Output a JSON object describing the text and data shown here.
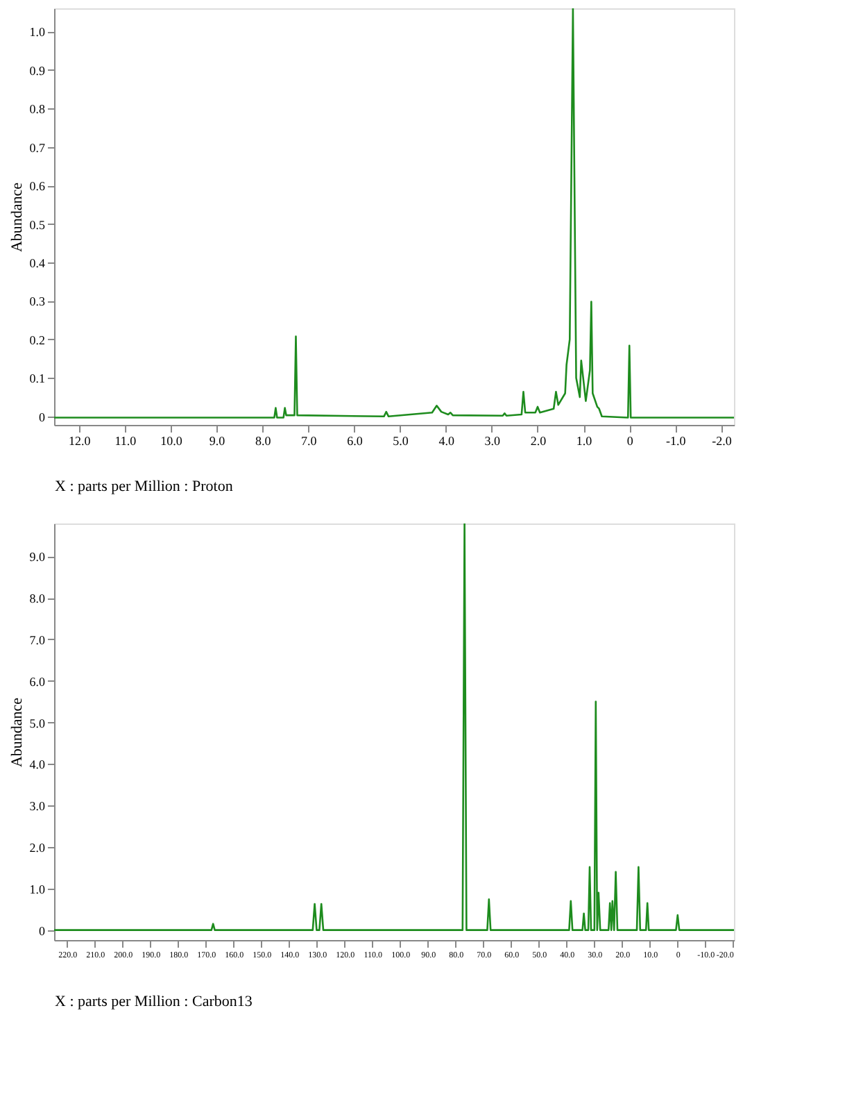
{
  "chart_data": [
    {
      "type": "line",
      "xlabel": "X : parts per Million : Proton",
      "ylabel": "Abundance",
      "grid": false,
      "marker": "none",
      "x": [
        12.54,
        7.74,
        7.71,
        7.68,
        7.54,
        7.51,
        7.48,
        7.3,
        7.27,
        7.24,
        5.35,
        5.3,
        5.25,
        4.3,
        4.2,
        4.1,
        3.95,
        3.9,
        3.85,
        2.76,
        2.72,
        2.68,
        2.35,
        2.31,
        2.27,
        2.05,
        2.0,
        1.95,
        1.65,
        1.6,
        1.55,
        1.4,
        1.37,
        1.3,
        1.23,
        1.16,
        1.08,
        1.05,
        0.95,
        0.86,
        0.83,
        0.8,
        0.7,
        0.66,
        0.6,
        0.03,
        0.0,
        -0.03,
        -2.28
      ],
      "series": [
        {
          "color": "#1e8c1e",
          "values": [
            -0.003,
            -0.003,
            0.022,
            -0.003,
            -0.003,
            0.022,
            0.003,
            0.003,
            0.208,
            0.003,
            0.0,
            0.012,
            0.0,
            0.01,
            0.028,
            0.012,
            0.005,
            0.01,
            0.003,
            0.002,
            0.008,
            0.002,
            0.005,
            0.064,
            0.01,
            0.01,
            0.025,
            0.01,
            0.02,
            0.064,
            0.03,
            0.06,
            0.134,
            0.2,
            1.06,
            0.1,
            0.05,
            0.145,
            0.04,
            0.12,
            0.298,
            0.06,
            0.025,
            0.02,
            0.0,
            -0.003,
            0.184,
            -0.003,
            -0.003
          ]
        }
      ],
      "xlim": [
        12.54,
        -2.28
      ],
      "xticks": [
        {
          "value": 12,
          "label": "12.0"
        },
        {
          "value": 11,
          "label": "11.0"
        },
        {
          "value": 10,
          "label": "10.0"
        },
        {
          "value": 9,
          "label": "9.0"
        },
        {
          "value": 8,
          "label": "8.0"
        },
        {
          "value": 7,
          "label": "7.0"
        },
        {
          "value": 6,
          "label": "6.0"
        },
        {
          "value": 5,
          "label": "5.0"
        },
        {
          "value": 4,
          "label": "4.0"
        },
        {
          "value": 3,
          "label": "3.0"
        },
        {
          "value": 2,
          "label": "2.0"
        },
        {
          "value": 1,
          "label": "1.0"
        },
        0,
        {
          "value": -1,
          "label": "-1.0"
        },
        {
          "value": -2,
          "label": "-2.0"
        }
      ],
      "ylim": [
        -0.022,
        1.06
      ],
      "yticks": [
        0,
        0.1,
        0.2,
        0.3,
        0.4,
        0.5,
        0.6,
        0.7,
        0.8,
        0.9,
        {
          "value": 1,
          "label": "1.0"
        }
      ]
    },
    {
      "type": "line",
      "xlabel": "X : parts per Million : Carbon13",
      "ylabel": "Abundance",
      "grid": false,
      "marker": "none",
      "x": [
        224.7,
        168.0,
        167.4,
        166.8,
        131.5,
        130.8,
        130.1,
        129.1,
        128.4,
        127.7,
        77.5,
        76.8,
        76.1,
        68.6,
        68.0,
        67.4,
        39.1,
        38.5,
        37.9,
        34.3,
        33.8,
        33.3,
        32.2,
        31.7,
        31.2,
        30.0,
        29.5,
        29.0,
        28.5,
        27.9,
        24.9,
        24.4,
        23.9,
        23.5,
        22.9,
        22.3,
        21.7,
        14.7,
        14.1,
        13.5,
        11.4,
        10.9,
        10.4,
        0.6,
        0.0,
        -0.6,
        -20.3
      ],
      "series": [
        {
          "color": "#1e8c1e",
          "values": [
            0.0,
            0.0,
            0.15,
            0.0,
            0.0,
            0.63,
            0.0,
            0.0,
            0.63,
            0.0,
            0.0,
            9.79,
            0.0,
            0.0,
            0.74,
            0.0,
            0.0,
            0.7,
            0.0,
            0.0,
            0.4,
            0.0,
            0.0,
            1.52,
            0.0,
            0.0,
            5.5,
            0.0,
            0.9,
            0.0,
            0.0,
            0.65,
            0.0,
            0.7,
            0.0,
            1.4,
            0.0,
            0.0,
            1.52,
            0.0,
            0.0,
            0.65,
            0.0,
            0.0,
            0.36,
            0.0,
            0.0
          ]
        }
      ],
      "xlim": [
        224.7,
        -20.3
      ],
      "xticks": [
        {
          "value": 220,
          "label": "220.0"
        },
        {
          "value": 210,
          "label": "210.0"
        },
        {
          "value": 200,
          "label": "200.0"
        },
        {
          "value": 190,
          "label": "190.0"
        },
        {
          "value": 180,
          "label": "180.0"
        },
        {
          "value": 170,
          "label": "170.0"
        },
        {
          "value": 160,
          "label": "160.0"
        },
        {
          "value": 150,
          "label": "150.0"
        },
        {
          "value": 140,
          "label": "140.0"
        },
        {
          "value": 130,
          "label": "130.0"
        },
        {
          "value": 120,
          "label": "120.0"
        },
        {
          "value": 110,
          "label": "110.0"
        },
        {
          "value": 100,
          "label": "100.0"
        },
        {
          "value": 90,
          "label": "90.0"
        },
        {
          "value": 80,
          "label": "80.0"
        },
        {
          "value": 70,
          "label": "70.0"
        },
        {
          "value": 60,
          "label": "60.0"
        },
        {
          "value": 50,
          "label": "50.0"
        },
        {
          "value": 40,
          "label": "40.0"
        },
        {
          "value": 30,
          "label": "30.0"
        },
        {
          "value": 20,
          "label": "20.0"
        },
        {
          "value": 10,
          "label": "10.0"
        },
        0,
        {
          "value": -10,
          "label": "-10.0"
        },
        {
          "value": -20,
          "label": "-20.0"
        }
      ],
      "ylim": [
        -0.24,
        9.79
      ],
      "yticks": [
        0,
        {
          "value": 1,
          "label": "1.0"
        },
        {
          "value": 2,
          "label": "2.0"
        },
        {
          "value": 3,
          "label": "3.0"
        },
        {
          "value": 4,
          "label": "4.0"
        },
        {
          "value": 5,
          "label": "5.0"
        },
        {
          "value": 6,
          "label": "6.0"
        },
        {
          "value": 7,
          "label": "7.0"
        },
        {
          "value": 8,
          "label": "8.0"
        },
        {
          "value": 9,
          "label": "9.0"
        }
      ]
    }
  ]
}
